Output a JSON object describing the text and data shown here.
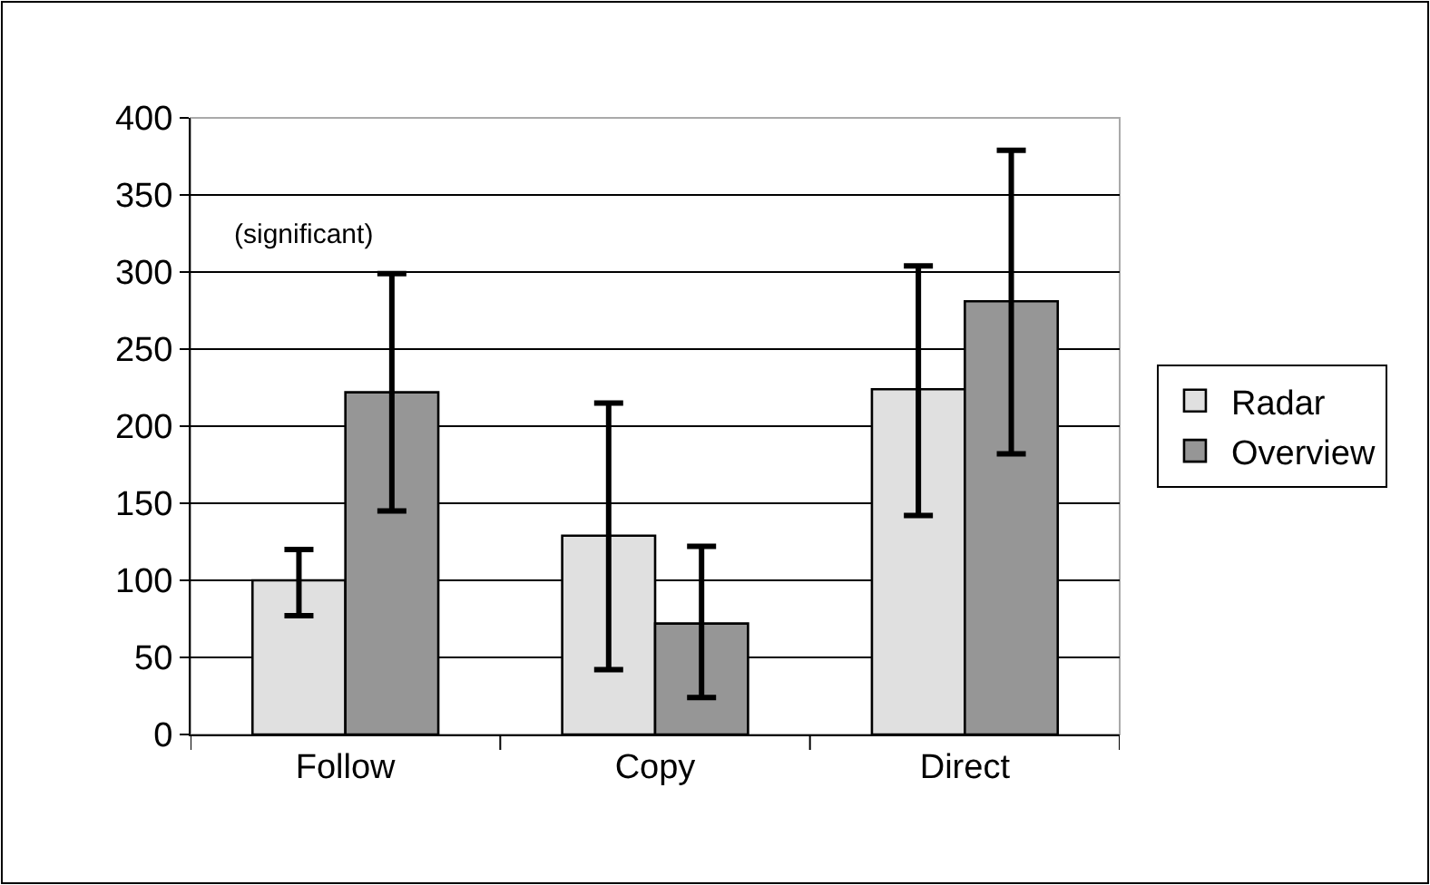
{
  "chart_data": {
    "type": "bar",
    "categories": [
      "Follow",
      "Copy",
      "Direct"
    ],
    "series": [
      {
        "name": "Radar",
        "color": "#e0e0e0",
        "values": [
          100,
          129,
          224
        ],
        "errors": [
          [
            77,
            120
          ],
          [
            42,
            215
          ],
          [
            142,
            304
          ]
        ]
      },
      {
        "name": "Overview",
        "color": "#969696",
        "values": [
          222,
          72,
          281
        ],
        "errors": [
          [
            145,
            299
          ],
          [
            24,
            122
          ],
          [
            182,
            379
          ]
        ]
      }
    ],
    "ylim": [
      0,
      400
    ],
    "yticks": [
      0,
      50,
      100,
      150,
      200,
      250,
      300,
      350,
      400
    ],
    "grid": "y",
    "legend": "right",
    "annotations": [
      "(significant)"
    ]
  }
}
